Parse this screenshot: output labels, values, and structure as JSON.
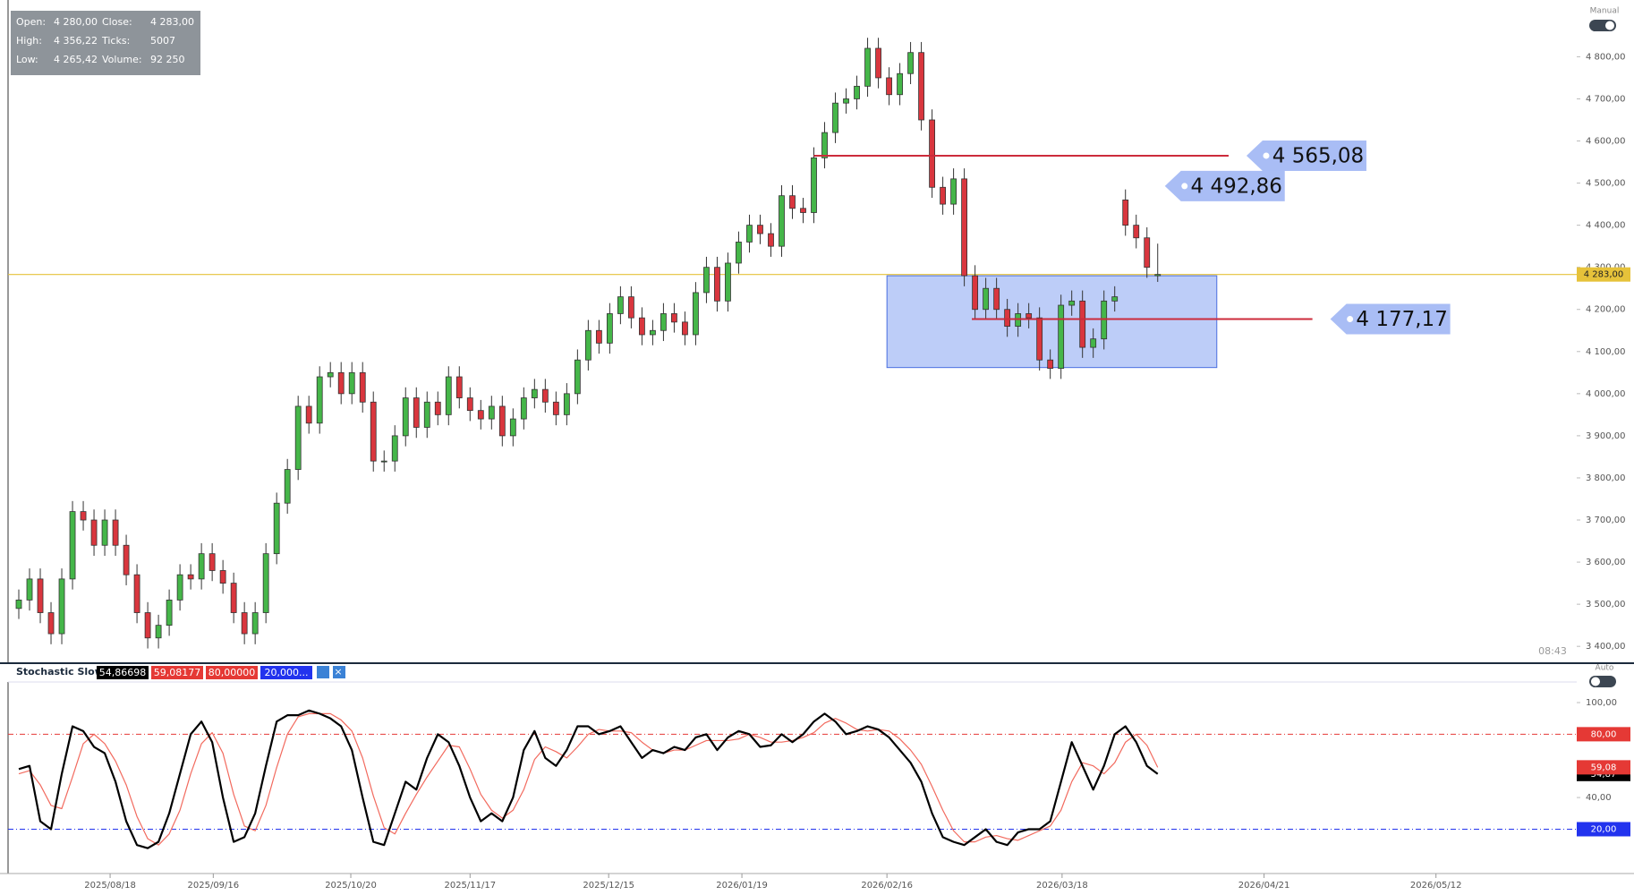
{
  "chart_data": [
    {
      "type": "candlestick",
      "x": [
        0,
        1,
        2,
        3,
        4,
        5,
        6,
        7,
        8,
        9,
        10,
        11,
        12,
        13,
        14,
        15,
        16,
        17,
        18,
        19,
        20,
        21,
        22,
        23,
        24,
        25,
        26,
        27,
        28,
        29,
        30,
        31,
        32,
        33,
        34,
        35,
        36,
        37,
        38,
        39,
        40,
        41,
        42,
        43,
        44,
        45,
        46,
        47,
        48,
        49,
        50,
        51,
        52,
        53,
        54,
        55,
        56,
        57,
        58,
        59,
        60,
        61,
        62,
        63,
        64,
        65,
        66,
        67,
        68,
        69,
        70,
        71,
        72,
        73,
        74,
        75,
        76,
        77,
        78,
        79,
        80,
        81,
        82,
        83,
        84,
        85,
        86,
        87,
        88,
        89,
        90,
        91,
        92,
        93,
        94,
        95,
        96,
        97,
        98,
        99,
        100,
        101,
        102,
        103,
        104,
        105,
        106
      ],
      "open": [
        3490,
        3510,
        3560,
        3480,
        3430,
        3560,
        3720,
        3700,
        3640,
        3700,
        3640,
        3570,
        3480,
        3420,
        3450,
        3510,
        3570,
        3560,
        3620,
        3580,
        3550,
        3480,
        3430,
        3480,
        3620,
        3740,
        3820,
        3970,
        3930,
        4040,
        4050,
        4000,
        4050,
        3980,
        3840,
        3840,
        3900,
        3990,
        3920,
        3980,
        3950,
        4040,
        3990,
        3960,
        3940,
        3970,
        3900,
        3940,
        3990,
        4010,
        3980,
        3950,
        4000,
        4080,
        4150,
        4120,
        4190,
        4230,
        4180,
        4140,
        4150,
        4190,
        4170,
        4140,
        4240,
        4300,
        4220,
        4310,
        4360,
        4400,
        4380,
        4350,
        4470,
        4440,
        4430,
        4560,
        4620,
        4690,
        4700,
        4730,
        4820,
        4750,
        4710,
        4760,
        4810,
        4650,
        4490,
        4450,
        4510,
        4280,
        4200,
        4250,
        4200,
        4160,
        4190,
        4180,
        4080,
        4060,
        4210,
        4220,
        4110,
        4130,
        4220,
        4460,
        4400,
        4370,
        4280
      ],
      "high": [
        3535,
        3585,
        3585,
        3505,
        3585,
        3745,
        3745,
        3725,
        3725,
        3725,
        3665,
        3595,
        3505,
        3475,
        3535,
        3595,
        3595,
        3645,
        3645,
        3605,
        3575,
        3505,
        3505,
        3645,
        3765,
        3845,
        3995,
        3995,
        4065,
        4075,
        4075,
        4075,
        4075,
        4005,
        3865,
        3925,
        4015,
        4015,
        4005,
        4005,
        4065,
        4065,
        4015,
        3985,
        3995,
        3995,
        3965,
        4015,
        4035,
        4035,
        4005,
        4025,
        4105,
        4175,
        4175,
        4215,
        4255,
        4255,
        4205,
        4175,
        4215,
        4215,
        4195,
        4265,
        4325,
        4325,
        4335,
        4385,
        4425,
        4425,
        4405,
        4495,
        4495,
        4465,
        4585,
        4645,
        4715,
        4725,
        4755,
        4845,
        4845,
        4775,
        4785,
        4835,
        4835,
        4675,
        4515,
        4535,
        4535,
        4305,
        4275,
        4275,
        4225,
        4215,
        4215,
        4205,
        4105,
        4235,
        4245,
        4245,
        4155,
        4245,
        4255,
        4485,
        4425,
        4395,
        4356.22
      ],
      "low": [
        3465,
        3485,
        3455,
        3405,
        3405,
        3535,
        3675,
        3615,
        3615,
        3615,
        3545,
        3455,
        3395,
        3395,
        3425,
        3485,
        3535,
        3535,
        3555,
        3525,
        3455,
        3405,
        3405,
        3455,
        3595,
        3715,
        3795,
        3905,
        3905,
        4015,
        3975,
        3975,
        3955,
        3815,
        3815,
        3815,
        3875,
        3895,
        3895,
        3925,
        3925,
        3965,
        3935,
        3915,
        3915,
        3875,
        3875,
        3915,
        3965,
        3955,
        3925,
        3925,
        3975,
        4055,
        4095,
        4095,
        4165,
        4155,
        4115,
        4115,
        4125,
        4145,
        4115,
        4115,
        4215,
        4195,
        4195,
        4285,
        4335,
        4355,
        4325,
        4325,
        4415,
        4405,
        4405,
        4535,
        4595,
        4665,
        4675,
        4705,
        4725,
        4685,
        4685,
        4735,
        4625,
        4465,
        4425,
        4425,
        4255,
        4175,
        4175,
        4175,
        4135,
        4135,
        4155,
        4055,
        4035,
        4035,
        4185,
        4085,
        4085,
        4105,
        4195,
        4375,
        4345,
        4275,
        4265.42
      ],
      "close": [
        3510,
        3560,
        3480,
        3430,
        3560,
        3720,
        3700,
        3640,
        3700,
        3640,
        3570,
        3480,
        3420,
        3450,
        3510,
        3570,
        3560,
        3620,
        3580,
        3550,
        3480,
        3430,
        3480,
        3620,
        3740,
        3820,
        3970,
        3930,
        4040,
        4050,
        4000,
        4050,
        3980,
        3840,
        3840,
        3900,
        3990,
        3920,
        3980,
        3950,
        4040,
        3990,
        3960,
        3940,
        3970,
        3900,
        3940,
        3990,
        4010,
        3980,
        3950,
        4000,
        4080,
        4150,
        4120,
        4190,
        4230,
        4180,
        4140,
        4150,
        4190,
        4170,
        4140,
        4240,
        4300,
        4220,
        4310,
        4360,
        4400,
        4380,
        4350,
        4470,
        4440,
        4430,
        4560,
        4620,
        4690,
        4700,
        4730,
        4820,
        4750,
        4710,
        4760,
        4810,
        4650,
        4490,
        4450,
        4510,
        4280,
        4200,
        4250,
        4200,
        4160,
        4190,
        4180,
        4080,
        4060,
        4210,
        4220,
        4110,
        4130,
        4220,
        4230,
        4400,
        4370,
        4300,
        4283
      ],
      "up_color": "#45b649",
      "down_color": "#d9363e",
      "xlim": [
        -1,
        145
      ],
      "ylim": [
        3360,
        4922
      ],
      "yticks": [
        {
          "value": 3400,
          "label": "3 400,00"
        },
        {
          "value": 3500,
          "label": "3 500,00"
        },
        {
          "value": 3600,
          "label": "3 600,00"
        },
        {
          "value": 3700,
          "label": "3 700,00"
        },
        {
          "value": 3800,
          "label": "3 800,00"
        },
        {
          "value": 3900,
          "label": "3 900,00"
        },
        {
          "value": 4000,
          "label": "4 000,00"
        },
        {
          "value": 4100,
          "label": "4 100,00"
        },
        {
          "value": 4200,
          "label": "4 200,00"
        },
        {
          "value": 4300,
          "label": "4 300,00"
        },
        {
          "value": 4400,
          "label": "4 400,00"
        },
        {
          "value": 4500,
          "label": "4 500,00"
        },
        {
          "value": 4600,
          "label": "4 600,00"
        },
        {
          "value": 4700,
          "label": "4 700,00"
        },
        {
          "value": 4800,
          "label": "4 800,00"
        }
      ],
      "last_price": {
        "value": 4283,
        "label": "4 283,00",
        "color": "#e6c23a"
      },
      "levels": [
        {
          "value": 4565.08,
          "label": "4 565,08",
          "x": [
            74,
            112.6
          ],
          "color": "#cc2b3b"
        },
        {
          "value": 4492.86,
          "label": "4 492,86"
        },
        {
          "value": 4177.17,
          "label": "4 177,17",
          "x": [
            88.7,
            120.4
          ],
          "color": "#cc2b3b"
        }
      ],
      "zone": {
        "x": [
          80.8,
          111.5
        ],
        "y": [
          4062,
          4280
        ],
        "color": "#7b9cf2"
      },
      "time_label": "08:43",
      "mode_label": "Manual"
    },
    {
      "type": "line",
      "title": "Stochastic Slow",
      "legend_values": [
        {
          "value": 54.86698,
          "label": "54,86698",
          "color": "#000000"
        },
        {
          "value": 59.08177,
          "label": "59,08177",
          "color": "#e53935"
        },
        {
          "value": 80,
          "label": "80,00000",
          "color": "#e53935"
        },
        {
          "value": 20,
          "label": "20,000...",
          "color": "#2233ee"
        }
      ],
      "x": [
        0,
        1,
        2,
        3,
        4,
        5,
        6,
        7,
        8,
        9,
        10,
        11,
        12,
        13,
        14,
        15,
        16,
        17,
        18,
        19,
        20,
        21,
        22,
        23,
        24,
        25,
        26,
        27,
        28,
        29,
        30,
        31,
        32,
        33,
        34,
        35,
        36,
        37,
        38,
        39,
        40,
        41,
        42,
        43,
        44,
        45,
        46,
        47,
        48,
        49,
        50,
        51,
        52,
        53,
        54,
        55,
        56,
        57,
        58,
        59,
        60,
        61,
        62,
        63,
        64,
        65,
        66,
        67,
        68,
        69,
        70,
        71,
        72,
        73,
        74,
        75,
        76,
        77,
        78,
        79,
        80,
        81,
        82,
        83,
        84,
        85,
        86,
        87,
        88,
        89,
        90,
        91,
        92,
        93,
        94,
        95,
        96,
        97,
        98,
        99,
        100,
        101,
        102,
        103,
        104,
        105,
        106
      ],
      "series": [
        {
          "color": "#f26a5e",
          "last_label": "59,08",
          "values": [
            55,
            57,
            48,
            35,
            33,
            53,
            74,
            80,
            74,
            63,
            48,
            28,
            14,
            10,
            17,
            32,
            55,
            74,
            81,
            68,
            42,
            22,
            19,
            35,
            59,
            80,
            91,
            93,
            93,
            93,
            89,
            82,
            65,
            41,
            21,
            17,
            30,
            42,
            53,
            63,
            73,
            72,
            58,
            42,
            32,
            27,
            32,
            45,
            64,
            72,
            69,
            65,
            72,
            80,
            83,
            82,
            82,
            81,
            75,
            70,
            68,
            70,
            70,
            73,
            76,
            76,
            76,
            77,
            80,
            78,
            75,
            75,
            76,
            78,
            81,
            87,
            90,
            87,
            83,
            82,
            83,
            82,
            77,
            70,
            61,
            47,
            32,
            19,
            12,
            12,
            15,
            16,
            14,
            13,
            16,
            19,
            22,
            32,
            50,
            62,
            60,
            55,
            62,
            75,
            80,
            73,
            59.08
          ]
        },
        {
          "color": "#000000",
          "last_label": "54,87",
          "values": [
            58,
            60,
            25,
            20,
            55,
            85,
            82,
            72,
            68,
            50,
            25,
            10,
            8,
            12,
            30,
            55,
            80,
            88,
            75,
            40,
            12,
            15,
            30,
            60,
            88,
            92,
            92,
            95,
            93,
            90,
            85,
            70,
            40,
            12,
            10,
            30,
            50,
            45,
            65,
            80,
            75,
            60,
            40,
            25,
            30,
            25,
            40,
            70,
            82,
            65,
            60,
            70,
            85,
            85,
            80,
            82,
            85,
            75,
            65,
            70,
            68,
            72,
            70,
            78,
            80,
            70,
            78,
            82,
            80,
            72,
            73,
            80,
            75,
            80,
            88,
            93,
            88,
            80,
            82,
            85,
            83,
            78,
            70,
            62,
            50,
            30,
            15,
            12,
            10,
            15,
            20,
            12,
            10,
            18,
            20,
            20,
            25,
            50,
            75,
            60,
            45,
            60,
            80,
            85,
            75,
            60,
            54.87
          ]
        }
      ],
      "hlines": [
        {
          "value": 80,
          "label": "80,00",
          "color": "#e53935"
        },
        {
          "value": 20,
          "label": "20,00",
          "color": "#2233ee"
        }
      ],
      "xlim": [
        -1,
        145
      ],
      "ylim": [
        -8,
        113
      ],
      "yticks": [
        {
          "value": 100,
          "label": "100,00"
        },
        {
          "value": 40,
          "label": "40,00"
        }
      ],
      "xticks": [
        {
          "value": 8.5,
          "label": "2025/08/18"
        },
        {
          "value": 18.1,
          "label": "2025/09/16"
        },
        {
          "value": 30.9,
          "label": "2025/10/20"
        },
        {
          "value": 42,
          "label": "2025/11/17"
        },
        {
          "value": 54.9,
          "label": "2025/12/15"
        },
        {
          "value": 67.3,
          "label": "2026/01/19"
        },
        {
          "value": 80.8,
          "label": "2026/02/16"
        },
        {
          "value": 97.1,
          "label": "2026/03/18"
        },
        {
          "value": 115.9,
          "label": "2026/04/21"
        },
        {
          "value": 131.9,
          "label": "2026/05/12"
        }
      ],
      "mode_label": "Auto"
    }
  ],
  "info": {
    "rows": [
      [
        "Open:",
        "4 280,00",
        "Close:",
        "4 283,00"
      ],
      [
        "High:",
        "4 356,22",
        "Ticks:",
        "5007"
      ],
      [
        "Low:",
        "4 265,42",
        "Volume:",
        "92 250"
      ]
    ]
  }
}
